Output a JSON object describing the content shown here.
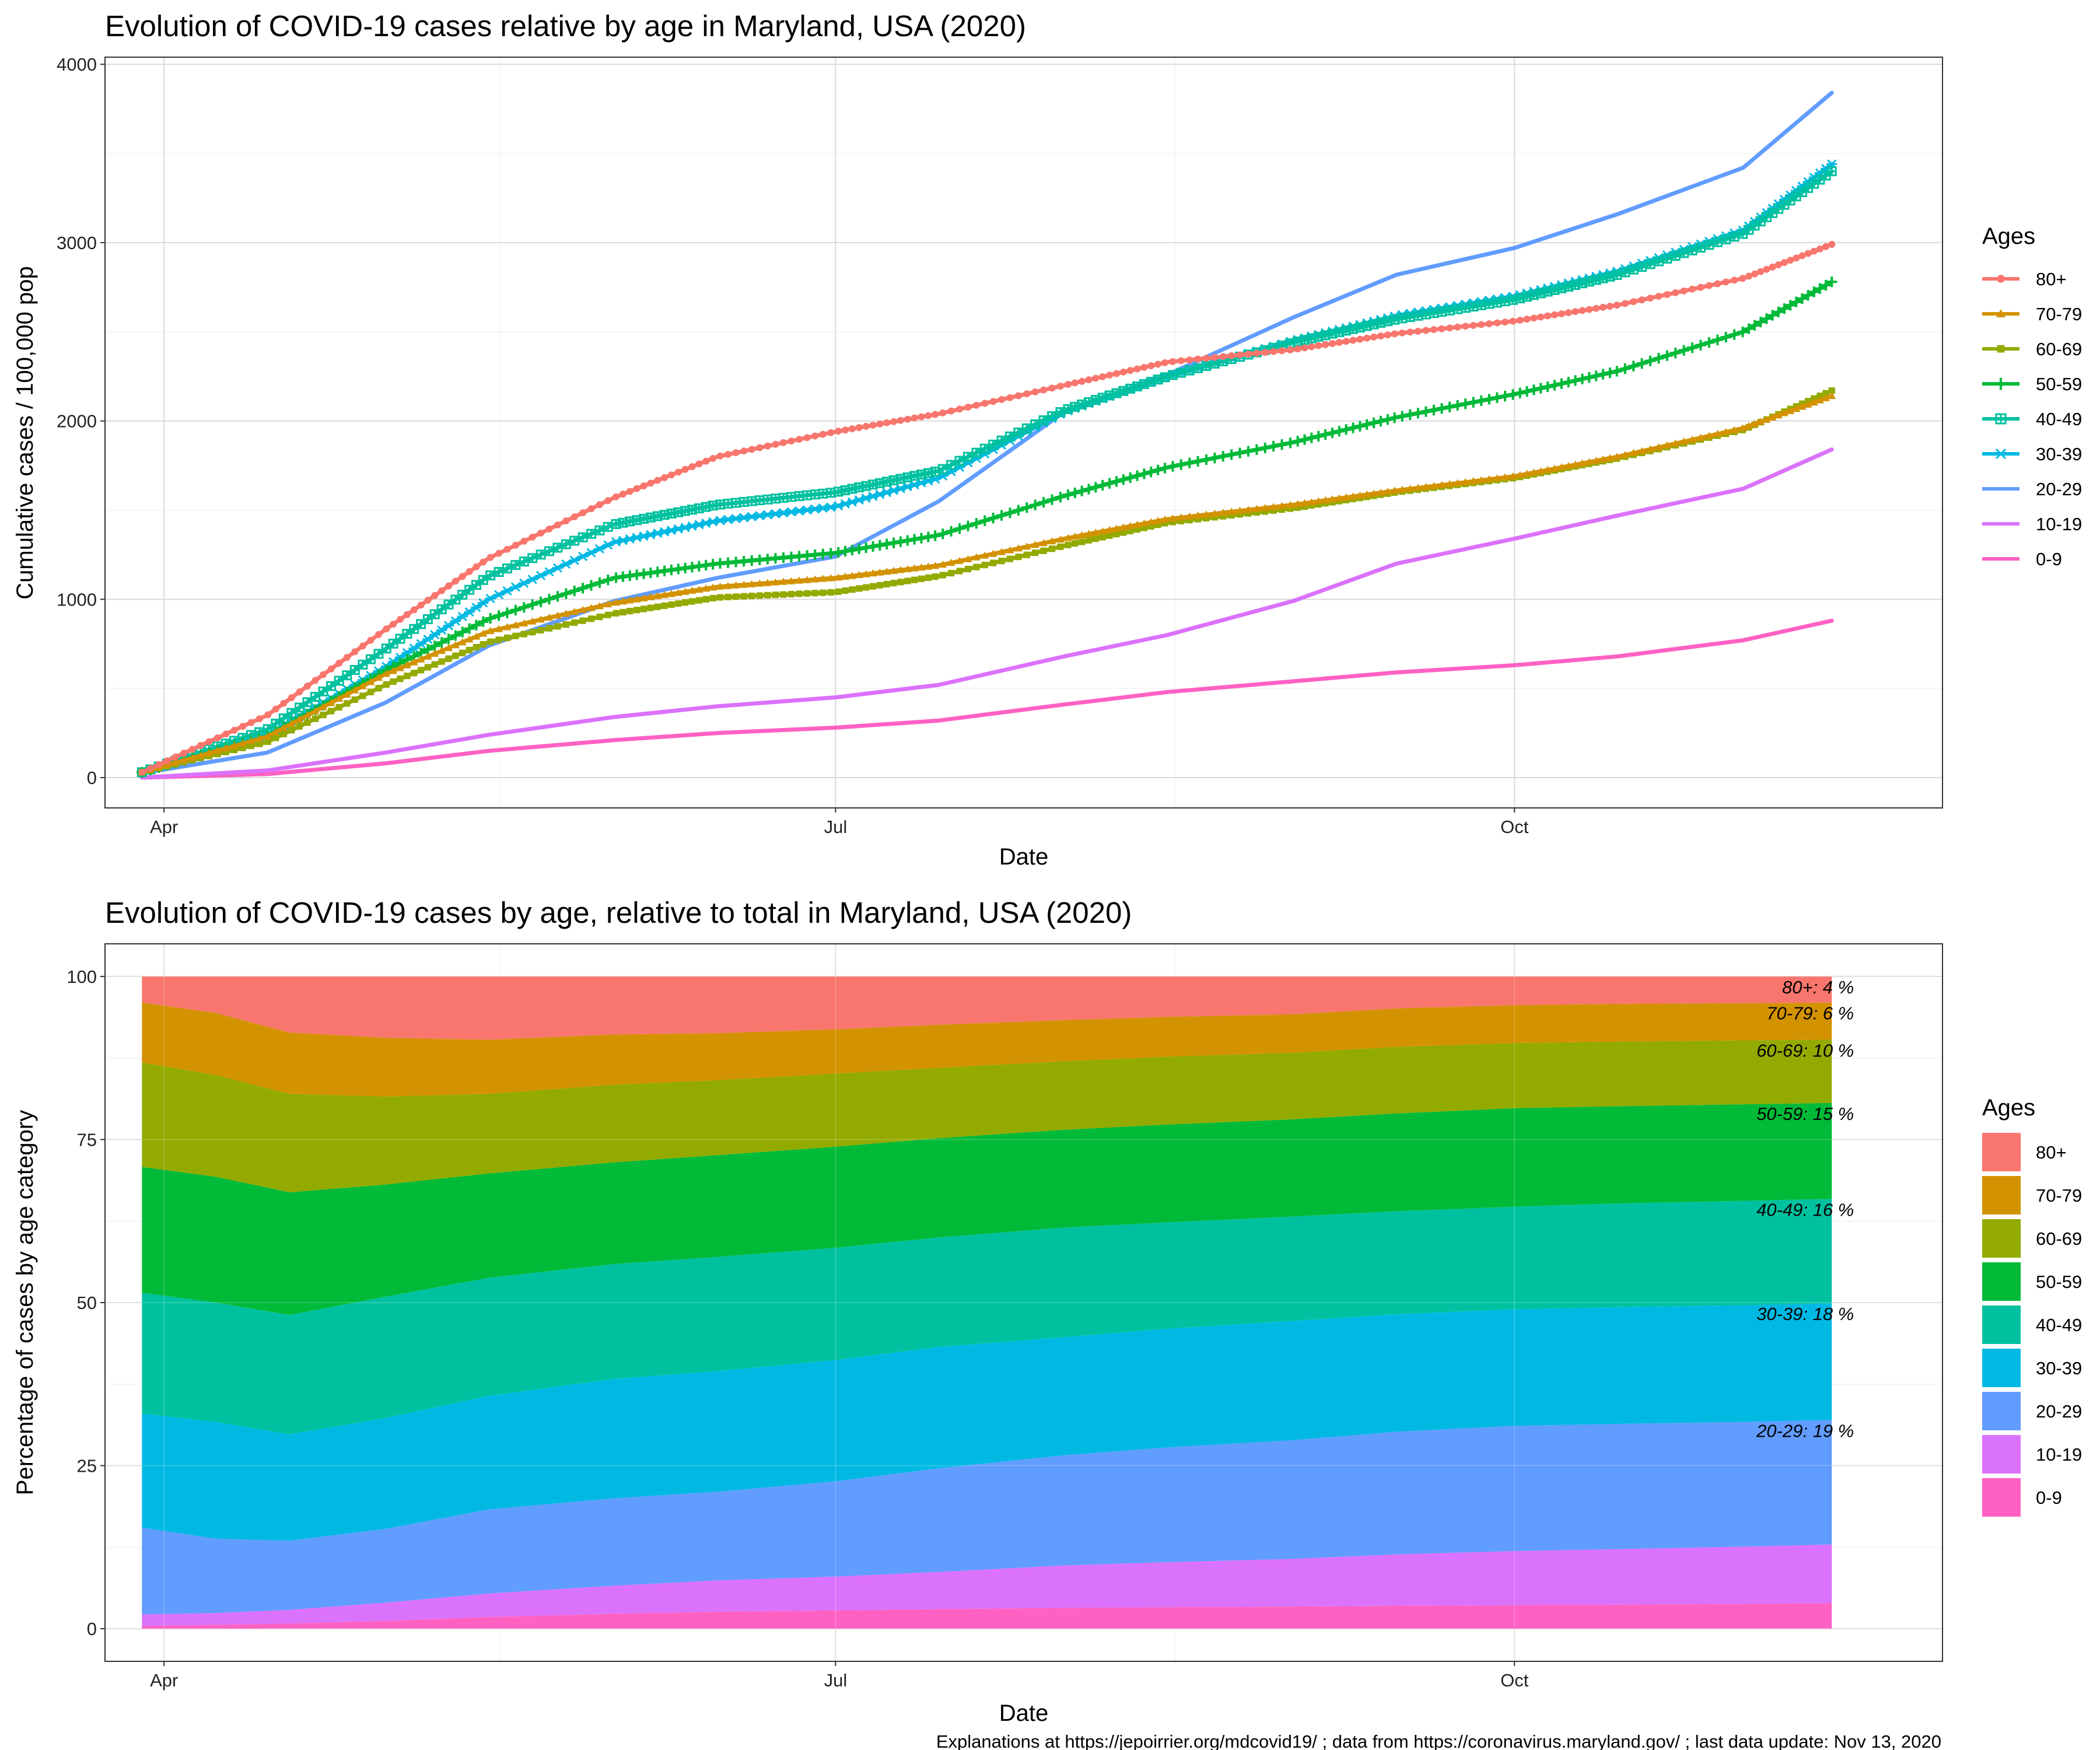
{
  "caption": "Explanations at https://jepoirrier.org/mdcovid19/ ; data from https://coronavirus.maryland.gov/ ; last data update: Nov 13, 2020",
  "colors": {
    "80+": "#F8766D",
    "70-79": "#D39200",
    "60-69": "#93AA00",
    "50-59": "#00BA38",
    "40-49": "#00C19F",
    "30-39": "#00B9E3",
    "20-29": "#619CFF",
    "10-19": "#DB72FB",
    "0-9": "#FF61C3"
  },
  "chart_data": [
    {
      "type": "line",
      "title": "Evolution of COVID-19 cases relative by age in Maryland, USA (2020)",
      "xlabel": "Date",
      "ylabel": "Cumulative cases / 100,000 pop",
      "x_ticks": [
        "Apr",
        "Jul",
        "Oct"
      ],
      "x_tick_dates": [
        "2020-04-01",
        "2020-07-01",
        "2020-10-01"
      ],
      "xlim": [
        "2020-03-24",
        "2020-11-28"
      ],
      "ylim": [
        -170,
        4040
      ],
      "y_ticks": [
        0,
        1000,
        2000,
        3000,
        4000
      ],
      "grid": true,
      "legend_title": "Ages",
      "legend_position": "right",
      "x": [
        "2020-03-29",
        "2020-04-15",
        "2020-05-01",
        "2020-05-15",
        "2020-06-01",
        "2020-06-15",
        "2020-07-01",
        "2020-07-15",
        "2020-08-01",
        "2020-08-15",
        "2020-09-01",
        "2020-09-15",
        "2020-10-01",
        "2020-10-15",
        "2020-11-01",
        "2020-11-13"
      ],
      "series": [
        {
          "name": "80+",
          "marker": "circle",
          "values": [
            30,
            350,
            830,
            1230,
            1570,
            1800,
            1940,
            2040,
            2200,
            2330,
            2400,
            2490,
            2560,
            2650,
            2800,
            2990
          ]
        },
        {
          "name": "70-79",
          "marker": "triangle",
          "values": [
            30,
            230,
            580,
            820,
            980,
            1070,
            1120,
            1190,
            1340,
            1450,
            1530,
            1610,
            1690,
            1800,
            1960,
            2140
          ]
        },
        {
          "name": "60-69",
          "marker": "square",
          "values": [
            30,
            200,
            520,
            760,
            920,
            1010,
            1040,
            1130,
            1300,
            1430,
            1510,
            1600,
            1680,
            1790,
            1950,
            2170
          ]
        },
        {
          "name": "50-59",
          "marker": "plus",
          "values": [
            30,
            230,
            600,
            890,
            1120,
            1200,
            1260,
            1360,
            1580,
            1740,
            1880,
            2020,
            2150,
            2280,
            2500,
            2780
          ]
        },
        {
          "name": "40-49",
          "marker": "boxplus",
          "values": [
            30,
            270,
            720,
            1130,
            1420,
            1530,
            1600,
            1720,
            2060,
            2250,
            2440,
            2570,
            2680,
            2820,
            3050,
            3400
          ]
        },
        {
          "name": "30-39",
          "marker": "asterisk",
          "values": [
            30,
            240,
            620,
            1000,
            1320,
            1440,
            1520,
            1680,
            2050,
            2250,
            2450,
            2590,
            2700,
            2840,
            3070,
            3440
          ]
        },
        {
          "name": "20-29",
          "marker": "none",
          "values": [
            25,
            140,
            420,
            740,
            990,
            1120,
            1240,
            1550,
            2050,
            2260,
            2580,
            2820,
            2970,
            3160,
            3420,
            3840
          ]
        },
        {
          "name": "10-19",
          "marker": "none",
          "values": [
            0,
            40,
            140,
            240,
            340,
            400,
            450,
            520,
            680,
            800,
            990,
            1200,
            1340,
            1470,
            1620,
            1840
          ]
        },
        {
          "name": "0-9",
          "marker": "none",
          "values": [
            0,
            20,
            80,
            150,
            210,
            250,
            280,
            320,
            410,
            480,
            540,
            590,
            630,
            680,
            770,
            880
          ]
        }
      ]
    },
    {
      "type": "area",
      "stacked": true,
      "title": "Evolution of COVID-19 cases by age, relative to total in Maryland, USA (2020)",
      "xlabel": "Date",
      "ylabel": "Percentage of cases by age category",
      "x_ticks": [
        "Apr",
        "Jul",
        "Oct"
      ],
      "x_tick_dates": [
        "2020-04-01",
        "2020-07-01",
        "2020-10-01"
      ],
      "xlim": [
        "2020-03-24",
        "2020-11-28"
      ],
      "ylim": [
        -5,
        105
      ],
      "y_ticks": [
        0,
        25,
        50,
        75,
        100
      ],
      "grid": true,
      "legend_title": "Ages",
      "legend_position": "right",
      "x": [
        "2020-03-29",
        "2020-04-08",
        "2020-04-18",
        "2020-05-01",
        "2020-05-15",
        "2020-06-01",
        "2020-06-15",
        "2020-07-01",
        "2020-07-15",
        "2020-08-01",
        "2020-08-15",
        "2020-09-01",
        "2020-09-15",
        "2020-10-01",
        "2020-10-15",
        "2020-11-01",
        "2020-11-13"
      ],
      "stack_order_bottom_to_top": [
        "0-9",
        "10-19",
        "20-29",
        "30-39",
        "40-49",
        "50-59",
        "60-69",
        "70-79",
        "80+"
      ],
      "series": [
        {
          "name": "0-9",
          "values": [
            0.4,
            0.6,
            0.8,
            1.2,
            1.8,
            2.3,
            2.6,
            2.8,
            3.0,
            3.2,
            3.3,
            3.4,
            3.5,
            3.6,
            3.7,
            3.8,
            3.9
          ]
        },
        {
          "name": "10-19",
          "values": [
            1.8,
            1.8,
            2.1,
            2.8,
            3.6,
            4.3,
            4.8,
            5.2,
            5.7,
            6.5,
            6.9,
            7.3,
            7.9,
            8.3,
            8.5,
            8.8,
            9.0
          ]
        },
        {
          "name": "20-29",
          "values": [
            13.3,
            11.4,
            10.6,
            11.3,
            12.9,
            13.4,
            13.6,
            14.6,
            15.9,
            16.9,
            17.6,
            18.2,
            18.8,
            19.2,
            19.2,
            19.1,
            19.1
          ]
        },
        {
          "name": "30-39",
          "values": [
            17.5,
            17.9,
            16.3,
            17.0,
            17.4,
            18.3,
            18.5,
            18.6,
            18.6,
            18.1,
            18.2,
            18.3,
            18.0,
            17.9,
            17.9,
            17.9,
            17.9
          ]
        },
        {
          "name": "40-49",
          "values": [
            18.5,
            18.3,
            18.3,
            18.6,
            18.1,
            17.6,
            17.5,
            17.2,
            16.8,
            16.8,
            16.3,
            16.0,
            15.8,
            15.7,
            15.9,
            16.0,
            16.0
          ]
        },
        {
          "name": "50-59",
          "values": [
            19.3,
            19.3,
            18.8,
            17.2,
            16.0,
            15.6,
            15.6,
            15.5,
            15.2,
            15.0,
            15.0,
            14.9,
            15.0,
            15.1,
            14.9,
            14.8,
            14.7
          ]
        },
        {
          "name": "60-69",
          "values": [
            16.0,
            15.6,
            15.1,
            13.5,
            12.2,
            11.9,
            11.5,
            11.2,
            10.8,
            10.5,
            10.4,
            10.2,
            10.2,
            10.0,
            9.9,
            9.8,
            9.7
          ]
        },
        {
          "name": "70-79",
          "values": [
            9.2,
            9.5,
            9.4,
            9.0,
            8.3,
            7.7,
            7.2,
            6.8,
            6.6,
            6.3,
            6.1,
            5.9,
            5.9,
            5.8,
            5.8,
            5.7,
            5.7
          ]
        },
        {
          "name": "80+",
          "values": [
            4.0,
            5.6,
            8.6,
            9.4,
            9.7,
            8.9,
            8.7,
            8.1,
            7.4,
            6.7,
            6.2,
            5.8,
            4.9,
            4.4,
            4.2,
            4.1,
            4.0
          ]
        }
      ],
      "annotations": [
        {
          "series": "80+",
          "text": "80+: 4 %"
        },
        {
          "series": "70-79",
          "text": "70-79: 6 %"
        },
        {
          "series": "60-69",
          "text": "60-69: 10 %"
        },
        {
          "series": "50-59",
          "text": "50-59: 15 %"
        },
        {
          "series": "40-49",
          "text": "40-49: 16 %"
        },
        {
          "series": "30-39",
          "text": "30-39: 18 %"
        },
        {
          "series": "20-29",
          "text": "20-29: 19 %"
        }
      ]
    }
  ]
}
